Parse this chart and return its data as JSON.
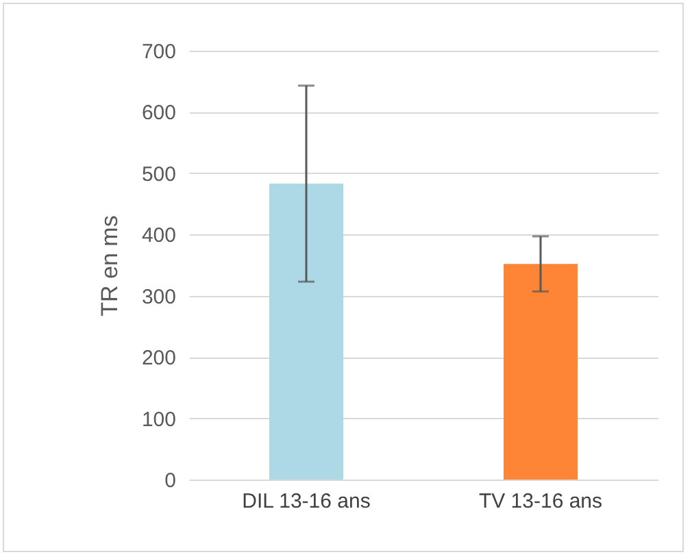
{
  "chart_data": {
    "type": "bar",
    "ylabel": "TR en ms",
    "categories": [
      "DIL 13-16 ans",
      "TV 13-16 ans"
    ],
    "values": [
      483,
      352
    ],
    "colors": [
      "#add8e6",
      "#fd8535"
    ],
    "errors": [
      160,
      45
    ],
    "ylim": [
      0,
      700
    ],
    "yticks": [
      0,
      100,
      200,
      300,
      400,
      500,
      600,
      700
    ],
    "grid": "y",
    "legend": false
  }
}
